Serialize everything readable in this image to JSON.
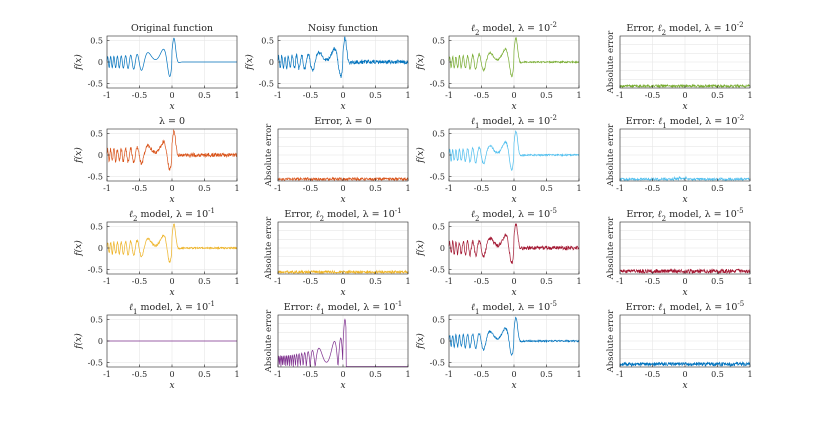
{
  "figure": {
    "x_ticks": [
      "-1",
      "-0.5",
      "0",
      "0.5",
      "1"
    ],
    "y_ticks_signal": [
      "0.5",
      "0",
      "-0.5"
    ],
    "x_axis_label": "x",
    "y_axis_label_signal": "f(x)",
    "y_axis_label_error": "Absolute error"
  },
  "chart_data": [
    {
      "id": "p1",
      "type": "line",
      "title": "Original function",
      "kind": "signal",
      "pattern": "original",
      "color": "#0072BD",
      "xlabel": "x",
      "ylabel": "f(x)",
      "xlim": [
        -1,
        1
      ],
      "ylim": [
        -0.6,
        0.6
      ],
      "x_ticks": [
        -1,
        -0.5,
        0,
        0.5,
        1
      ],
      "y_ticks": [
        -0.5,
        0,
        0.5
      ],
      "grid": true
    },
    {
      "id": "p2",
      "type": "line",
      "title": "Noisy function",
      "kind": "signal",
      "pattern": "noisy",
      "color": "#0072BD",
      "xlabel": "x",
      "ylabel": "f(x)",
      "xlim": [
        -1,
        1
      ],
      "ylim": [
        -0.6,
        0.6
      ],
      "x_ticks": [
        -1,
        -0.5,
        0,
        0.5,
        1
      ],
      "y_ticks": [
        -0.5,
        0,
        0.5
      ],
      "grid": true
    },
    {
      "id": "p3",
      "type": "line",
      "title": "ℓ2 model, λ = 10^-2",
      "kind": "signal",
      "pattern": "model",
      "color": "#77AC30",
      "xlabel": "x",
      "ylabel": "f(x)",
      "xlim": [
        -1,
        1
      ],
      "ylim": [
        -0.6,
        0.6
      ],
      "x_ticks": [
        -1,
        -0.5,
        0,
        0.5,
        1
      ],
      "y_ticks": [
        -0.5,
        0,
        0.5
      ],
      "grid": true
    },
    {
      "id": "p4",
      "type": "line",
      "title": "Error, ℓ2 model, λ = 10^-2",
      "kind": "error",
      "pattern": "error_low",
      "color": "#77AC30",
      "xlabel": "x",
      "ylabel": "Absolute error",
      "xlim": [
        -1,
        1
      ],
      "ylim": [
        0,
        0.6
      ],
      "x_ticks": [
        -1,
        -0.5,
        0,
        0.5,
        1
      ],
      "grid": true
    },
    {
      "id": "p5",
      "type": "line",
      "title": "λ = 0",
      "kind": "signal",
      "pattern": "noisy",
      "color": "#D95319",
      "xlabel": "x",
      "ylabel": "f(x)",
      "xlim": [
        -1,
        1
      ],
      "ylim": [
        -0.6,
        0.6
      ],
      "x_ticks": [
        -1,
        -0.5,
        0,
        0.5,
        1
      ],
      "y_ticks": [
        -0.5,
        0,
        0.5
      ],
      "grid": true
    },
    {
      "id": "p6",
      "type": "line",
      "title": "Error, λ = 0",
      "kind": "error",
      "pattern": "error_low",
      "color": "#D95319",
      "xlabel": "x",
      "ylabel": "Absolute error",
      "xlim": [
        -1,
        1
      ],
      "ylim": [
        0,
        0.6
      ],
      "x_ticks": [
        -1,
        -0.5,
        0,
        0.5,
        1
      ],
      "grid": true
    },
    {
      "id": "p7",
      "type": "line",
      "title": "ℓ1 model, λ = 10^-2",
      "kind": "signal",
      "pattern": "model",
      "color": "#4DBEEE",
      "xlabel": "x",
      "ylabel": "f(x)",
      "xlim": [
        -1,
        1
      ],
      "ylim": [
        -0.6,
        0.6
      ],
      "x_ticks": [
        -1,
        -0.5,
        0,
        0.5,
        1
      ],
      "y_ticks": [
        -0.5,
        0,
        0.5
      ],
      "grid": true
    },
    {
      "id": "p8",
      "type": "line",
      "title": "Error: ℓ1 model, λ = 10^-2",
      "kind": "error",
      "pattern": "error_bump",
      "color": "#4DBEEE",
      "xlabel": "x",
      "ylabel": "Absolute error",
      "xlim": [
        -1,
        1
      ],
      "ylim": [
        0,
        0.6
      ],
      "x_ticks": [
        -1,
        -0.5,
        0,
        0.5,
        1
      ],
      "grid": true
    },
    {
      "id": "p9",
      "type": "line",
      "title": "ℓ2 model, λ = 10^-1",
      "kind": "signal",
      "pattern": "model",
      "color": "#EDB120",
      "xlabel": "x",
      "ylabel": "f(x)",
      "xlim": [
        -1,
        1
      ],
      "ylim": [
        -0.6,
        0.6
      ],
      "x_ticks": [
        -1,
        -0.5,
        0,
        0.5,
        1
      ],
      "y_ticks": [
        -0.5,
        0,
        0.5
      ],
      "grid": true
    },
    {
      "id": "p10",
      "type": "line",
      "title": "Error, ℓ2 model, λ = 10^-1",
      "kind": "error",
      "pattern": "error_low",
      "color": "#EDB120",
      "xlabel": "x",
      "ylabel": "Absolute error",
      "xlim": [
        -1,
        1
      ],
      "ylim": [
        0,
        0.6
      ],
      "x_ticks": [
        -1,
        -0.5,
        0,
        0.5,
        1
      ],
      "grid": true
    },
    {
      "id": "p11",
      "type": "line",
      "title": "ℓ2 model, λ = 10^-5",
      "kind": "signal",
      "pattern": "noisy",
      "color": "#A2142F",
      "xlabel": "x",
      "ylabel": "f(x)",
      "xlim": [
        -1,
        1
      ],
      "ylim": [
        -0.6,
        0.6
      ],
      "x_ticks": [
        -1,
        -0.5,
        0,
        0.5,
        1
      ],
      "y_ticks": [
        -0.5,
        0,
        0.5
      ],
      "grid": true
    },
    {
      "id": "p12",
      "type": "line",
      "title": "Error, ℓ2 model, λ = 10^-5",
      "kind": "error",
      "pattern": "error_mid",
      "color": "#A2142F",
      "xlabel": "x",
      "ylabel": "Absolute error",
      "xlim": [
        -1,
        1
      ],
      "ylim": [
        0,
        0.6
      ],
      "x_ticks": [
        -1,
        -0.5,
        0,
        0.5,
        1
      ],
      "grid": true
    },
    {
      "id": "p13",
      "type": "line",
      "title": "ℓ1 model, λ = 10^-1",
      "kind": "signal",
      "pattern": "flat",
      "color": "#7E2F8E",
      "xlabel": "x",
      "ylabel": "f(x)",
      "xlim": [
        -1,
        1
      ],
      "ylim": [
        -0.6,
        0.6
      ],
      "x_ticks": [
        -1,
        -0.5,
        0,
        0.5,
        1
      ],
      "y_ticks": [
        -0.5,
        0,
        0.5
      ],
      "grid": true
    },
    {
      "id": "p14",
      "type": "line",
      "title": "Error: ℓ1 model, λ = 10^-1",
      "kind": "error",
      "pattern": "error_full",
      "color": "#7E2F8E",
      "xlabel": "x",
      "ylabel": "Absolute error",
      "xlim": [
        -1,
        1
      ],
      "ylim": [
        0,
        0.6
      ],
      "x_ticks": [
        -1,
        -0.5,
        0,
        0.5,
        1
      ],
      "grid": true
    },
    {
      "id": "p15",
      "type": "line",
      "title": "ℓ1 model, λ = 10^-5",
      "kind": "signal",
      "pattern": "model",
      "color": "#0072BD",
      "xlabel": "x",
      "ylabel": "f(x)",
      "xlim": [
        -1,
        1
      ],
      "ylim": [
        -0.6,
        0.6
      ],
      "x_ticks": [
        -1,
        -0.5,
        0,
        0.5,
        1
      ],
      "y_ticks": [
        -0.5,
        0,
        0.5
      ],
      "grid": true
    },
    {
      "id": "p16",
      "type": "line",
      "title": "Error: ℓ1 model, λ = 10^-5",
      "kind": "error",
      "pattern": "error_mid",
      "color": "#0072BD",
      "xlabel": "x",
      "ylabel": "Absolute error",
      "xlim": [
        -1,
        1
      ],
      "ylim": [
        0,
        0.6
      ],
      "x_ticks": [
        -1,
        -0.5,
        0,
        0.5,
        1
      ],
      "grid": true
    }
  ]
}
